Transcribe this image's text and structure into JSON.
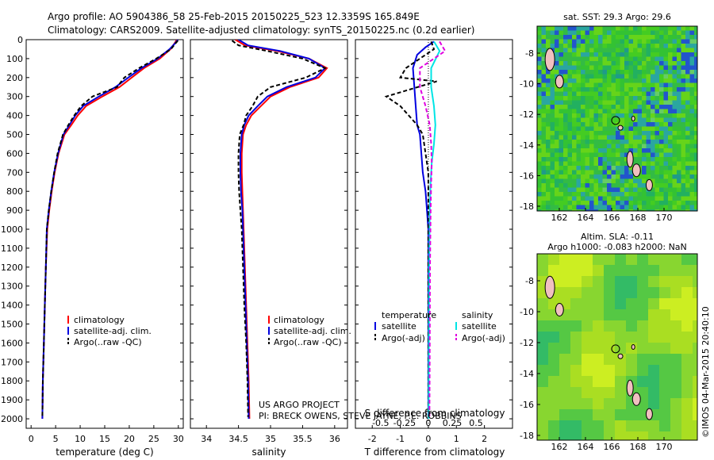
{
  "header": {
    "line1": "Argo profile: AO 5904386_58 25-Feb-2015 20150225_523 12.3359S 165.849E",
    "line2": "Climatology: CARS2009. Satellite-adjusted climatology: synTS_20150225.nc (0.2d earlier)"
  },
  "project_note": {
    "line1": "US ARGO PROJECT",
    "line2": "PI: BRECK OWENS, STEVE JAYNE, P.E. ROBBINS"
  },
  "watermark": "©IMOS 04-Mar-2015 20:40:10",
  "colors": {
    "climatology": "#ff0000",
    "satellite": "#0000e0",
    "argo": "#000000",
    "satellite_s": "#00e5e5",
    "argo_s": "#e000e0",
    "map_green": "#33cc33"
  },
  "depth_ticks": [
    "0",
    "100",
    "200",
    "300",
    "400",
    "500",
    "600",
    "700",
    "800",
    "900",
    "1000",
    "1100",
    "1200",
    "1300",
    "1400",
    "1500",
    "1600",
    "1700",
    "1800",
    "1900",
    "2000"
  ],
  "legend_profile": [
    "climatology",
    "satellite-adj. clim.",
    "Argo(..raw -QC)"
  ],
  "legend_diff": {
    "temperature_title": "temperature",
    "salinity_title": "salinity",
    "satellite": "satellite",
    "argo": "Argo(-adj)"
  },
  "chart_data": [
    {
      "type": "line",
      "title": "",
      "xlabel": "temperature (deg C)",
      "ylabel": "",
      "xlim": [
        -1,
        31
      ],
      "ylim": [
        2050,
        0
      ],
      "xticks": [
        "0",
        "5",
        "10",
        "15",
        "20",
        "25",
        "30"
      ],
      "xtick_values": [
        0,
        5,
        10,
        15,
        20,
        25,
        30
      ],
      "series": [
        {
          "name": "climatology",
          "x": [
            29.7,
            29.2,
            28.4,
            26.2,
            23.0,
            20.5,
            18.0,
            14.5,
            11.2,
            9.5,
            8.2,
            6.8,
            5.6,
            4.8,
            4.2,
            3.7,
            3.3,
            3.0,
            2.8,
            2.6,
            2.4,
            2.3
          ],
          "y": [
            0,
            20,
            50,
            100,
            150,
            200,
            250,
            300,
            350,
            400,
            450,
            500,
            600,
            700,
            800,
            900,
            1000,
            1200,
            1400,
            1600,
            1800,
            2000
          ]
        },
        {
          "name": "satellite-adj. clim.",
          "x": [
            29.9,
            29.3,
            28.2,
            25.8,
            22.5,
            19.8,
            17.2,
            13.8,
            10.6,
            9.0,
            7.8,
            6.6,
            5.5,
            4.7,
            4.1,
            3.6,
            3.2,
            3.0,
            2.8,
            2.6,
            2.4,
            2.3
          ],
          "y": [
            0,
            20,
            50,
            100,
            150,
            200,
            250,
            300,
            350,
            400,
            450,
            500,
            600,
            700,
            800,
            900,
            1000,
            1200,
            1400,
            1600,
            1800,
            2000
          ]
        },
        {
          "name": "Argo(..raw -QC)",
          "x": [
            29.9,
            29.4,
            28.5,
            25.5,
            22.0,
            19.0,
            17.5,
            12.5,
            10.2,
            8.8,
            7.6,
            6.5,
            5.4,
            4.7,
            4.1,
            3.6,
            3.2,
            3.0,
            2.8,
            2.6,
            2.4,
            2.3
          ],
          "y": [
            5,
            20,
            50,
            100,
            150,
            200,
            250,
            300,
            350,
            400,
            450,
            500,
            600,
            700,
            800,
            900,
            1000,
            1200,
            1400,
            1600,
            1800,
            1990
          ]
        }
      ]
    },
    {
      "type": "line",
      "title": "",
      "xlabel": "salinity",
      "ylabel": "",
      "xlim": [
        33.75,
        36.2
      ],
      "ylim": [
        2050,
        0
      ],
      "xticks": [
        "34",
        "34.5",
        "35",
        "35.5",
        "36"
      ],
      "xtick_values": [
        34,
        34.5,
        35,
        35.5,
        36
      ],
      "series": [
        {
          "name": "climatology",
          "x": [
            34.45,
            34.6,
            35.1,
            35.6,
            35.88,
            35.75,
            35.3,
            35.0,
            34.85,
            34.7,
            34.62,
            34.57,
            34.55,
            34.55,
            34.56,
            34.57,
            34.58,
            34.6,
            34.62,
            34.64,
            34.66,
            34.67
          ],
          "y": [
            0,
            30,
            60,
            100,
            150,
            200,
            250,
            300,
            350,
            400,
            450,
            500,
            600,
            700,
            800,
            900,
            1000,
            1200,
            1400,
            1600,
            1800,
            2000
          ]
        },
        {
          "name": "satellite-adj. clim.",
          "x": [
            34.5,
            34.65,
            35.15,
            35.6,
            35.85,
            35.7,
            35.25,
            34.95,
            34.8,
            34.66,
            34.59,
            34.55,
            34.53,
            34.53,
            34.54,
            34.56,
            34.57,
            34.59,
            34.61,
            34.63,
            34.65,
            34.66
          ],
          "y": [
            0,
            30,
            60,
            100,
            150,
            200,
            250,
            300,
            350,
            400,
            450,
            500,
            600,
            700,
            800,
            900,
            1000,
            1200,
            1400,
            1600,
            1800,
            2000
          ]
        },
        {
          "name": "Argo(..raw -QC)",
          "x": [
            34.4,
            34.5,
            34.95,
            35.5,
            35.85,
            35.55,
            35.0,
            34.8,
            34.72,
            34.62,
            34.58,
            34.52,
            34.5,
            34.5,
            34.51,
            34.53,
            34.55,
            34.57,
            34.59,
            34.62,
            34.64,
            34.65
          ],
          "y": [
            5,
            30,
            60,
            100,
            150,
            200,
            250,
            300,
            350,
            400,
            450,
            500,
            600,
            700,
            800,
            900,
            1000,
            1200,
            1400,
            1600,
            1800,
            1990
          ]
        }
      ]
    },
    {
      "type": "line",
      "title": "",
      "xlabel": "T difference from climatology",
      "xlabel2": "S difference from climatology",
      "ylabel": "",
      "xlim": [
        -2.6,
        3.0
      ],
      "ylim": [
        2050,
        0
      ],
      "xticks": [
        "-2",
        "-1",
        "0",
        "1",
        "2"
      ],
      "xtick_values": [
        -2,
        -1,
        0,
        1,
        2
      ],
      "xticks2": [
        "-0.5",
        "-0.25",
        "0",
        "0.25",
        "0.5"
      ],
      "series": [
        {
          "name": "temperature satellite",
          "x": [
            0.2,
            -0.1,
            -0.4,
            -0.55,
            -0.5,
            -0.45,
            -0.4,
            -0.3,
            -0.25,
            -0.2,
            -0.1,
            -0.05,
            0,
            0,
            0,
            0,
            0
          ],
          "y": [
            10,
            40,
            80,
            150,
            250,
            350,
            450,
            500,
            600,
            700,
            800,
            900,
            1000,
            1200,
            1500,
            1800,
            2000
          ]
        },
        {
          "name": "temperature Argo(-adj)",
          "x": [
            0.1,
            0.2,
            -0.3,
            -0.8,
            -1.0,
            0.3,
            -1.5,
            -1.0,
            -0.7,
            -0.4,
            -0.2,
            -0.1,
            0,
            0,
            0,
            0,
            0
          ],
          "y": [
            10,
            50,
            100,
            150,
            200,
            220,
            300,
            350,
            400,
            450,
            500,
            600,
            700,
            900,
            1200,
            1600,
            2000
          ]
        },
        {
          "name": "salinity satellite",
          "x": [
            0.2,
            0.4,
            0.1,
            0.1,
            0.2,
            0.25,
            0.2,
            0.12,
            0.08,
            0.05,
            0.03,
            0.02,
            0.01
          ],
          "y": [
            10,
            60,
            150,
            250,
            350,
            450,
            550,
            650,
            750,
            900,
            1200,
            1600,
            2000
          ]
        },
        {
          "name": "salinity Argo(-adj)",
          "x": [
            0.4,
            0.6,
            -0.3,
            -0.3,
            -0.1,
            0.05,
            0.1,
            0.12,
            0.1,
            0.08,
            0.06,
            0.05,
            0.04
          ],
          "y": [
            10,
            60,
            150,
            250,
            350,
            450,
            550,
            650,
            750,
            900,
            1200,
            1600,
            2000
          ]
        }
      ]
    },
    {
      "type": "heatmap",
      "title": "sat. SST: 29.3  Argo: 29.6",
      "xticks": [
        "162",
        "164",
        "166",
        "168",
        "170"
      ],
      "yticks": [
        "-8",
        "-10",
        "-12",
        "-14",
        "-16",
        "-18"
      ]
    },
    {
      "type": "heatmap",
      "title": "Altim. SLA: -0.11",
      "subtitle": "Argo h1000: -0.083  h2000: NaN",
      "xticks": [
        "162",
        "164",
        "166",
        "168",
        "170"
      ],
      "yticks": [
        "-8",
        "-10",
        "-12",
        "-14",
        "-16",
        "-18"
      ]
    }
  ]
}
